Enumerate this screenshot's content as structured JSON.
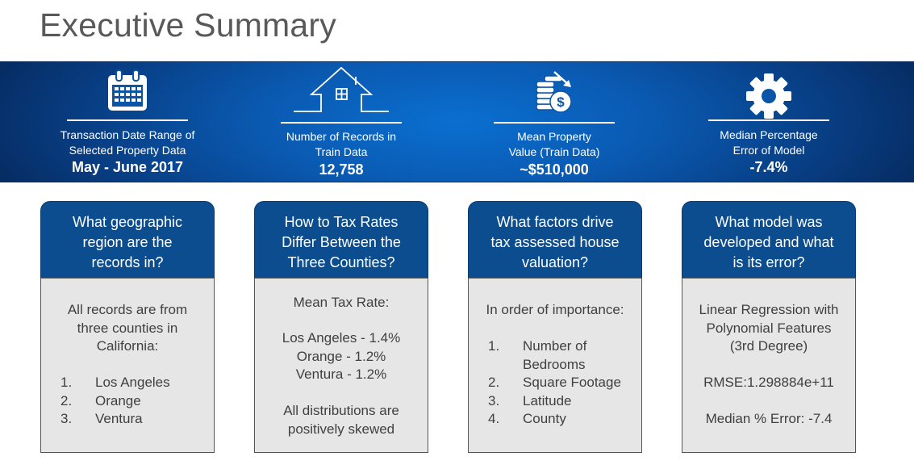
{
  "page_title": "Executive Summary",
  "stats": [
    {
      "icon": "calendar-icon",
      "label_lines": [
        "Transaction Date Range of",
        "Selected Property Data"
      ],
      "value": "May - June 2017"
    },
    {
      "icon": "house-icon",
      "label_lines": [
        "Number of Records in",
        "Train Data"
      ],
      "value": "12,758"
    },
    {
      "icon": "coins-dollar-icon",
      "label_lines": [
        "Mean Property",
        "Value (Train Data)"
      ],
      "value": "~$510,000"
    },
    {
      "icon": "gear-icon",
      "label_lines": [
        "Median Percentage",
        "Error of Model"
      ],
      "value": "-7.4%"
    }
  ],
  "cards": [
    {
      "question_lines": [
        "What geographic",
        "region are the",
        "records in?"
      ],
      "intro_lines": [
        "All records are from",
        "three counties in",
        "California:"
      ],
      "list": [
        {
          "num": "1.",
          "text": "Los Angeles"
        },
        {
          "num": "2.",
          "text": "Orange"
        },
        {
          "num": "3.",
          "text": "Ventura"
        }
      ]
    },
    {
      "question_lines": [
        "How to Tax Rates",
        "Differ Between the",
        "Three Counties?"
      ],
      "heading": "Mean Tax Rate:",
      "rates": [
        "Los Angeles - 1.4%",
        "Orange - 1.2%",
        "Ventura - 1.2%"
      ],
      "note_lines": [
        "All distributions are",
        "positively skewed"
      ]
    },
    {
      "question_lines": [
        "What factors drive",
        "tax assessed house",
        "valuation?"
      ],
      "intro": "In order of importance:",
      "list": [
        {
          "num": "1.",
          "lines": [
            "Number of",
            "Bedrooms"
          ]
        },
        {
          "num": "2.",
          "lines": [
            "Square Footage"
          ]
        },
        {
          "num": "3.",
          "lines": [
            "Latitude"
          ]
        },
        {
          "num": "4.",
          "lines": [
            "County"
          ]
        }
      ]
    },
    {
      "question_lines": [
        "What model was",
        "developed and what",
        "is its error?"
      ],
      "model_lines": [
        "Linear Regression with",
        "Polynomial Features",
        "(3rd Degree)"
      ],
      "rmse": "RMSE:1.298884e+11",
      "median_error": "Median % Error: -7.4"
    }
  ]
}
